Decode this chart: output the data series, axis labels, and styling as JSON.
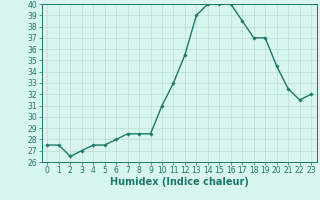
{
  "x": [
    0,
    1,
    2,
    3,
    4,
    5,
    6,
    7,
    8,
    9,
    10,
    11,
    12,
    13,
    14,
    15,
    16,
    17,
    18,
    19,
    20,
    21,
    22,
    23
  ],
  "y": [
    27.5,
    27.5,
    26.5,
    27,
    27.5,
    27.5,
    28,
    28.5,
    28.5,
    28.5,
    31,
    33,
    35.5,
    39,
    40,
    40,
    40,
    38.5,
    37,
    37,
    34.5,
    32.5,
    31.5,
    32
  ],
  "line_color": "#1a7a6a",
  "marker": "D",
  "marker_size": 1.8,
  "bg_color": "#d8f5f0",
  "grid_color": "#b8ddd9",
  "xlabel": "Humidex (Indice chaleur)",
  "ylim": [
    26,
    40
  ],
  "xlim": [
    -0.5,
    23.5
  ],
  "yticks": [
    26,
    27,
    28,
    29,
    30,
    31,
    32,
    33,
    34,
    35,
    36,
    37,
    38,
    39,
    40
  ],
  "xticks": [
    0,
    1,
    2,
    3,
    4,
    5,
    6,
    7,
    8,
    9,
    10,
    11,
    12,
    13,
    14,
    15,
    16,
    17,
    18,
    19,
    20,
    21,
    22,
    23
  ],
  "tick_color": "#1a7a6a",
  "axis_color": "#1a7a6a",
  "tick_fontsize": 5.5,
  "xlabel_fontsize": 7.0,
  "line_width": 1.0
}
